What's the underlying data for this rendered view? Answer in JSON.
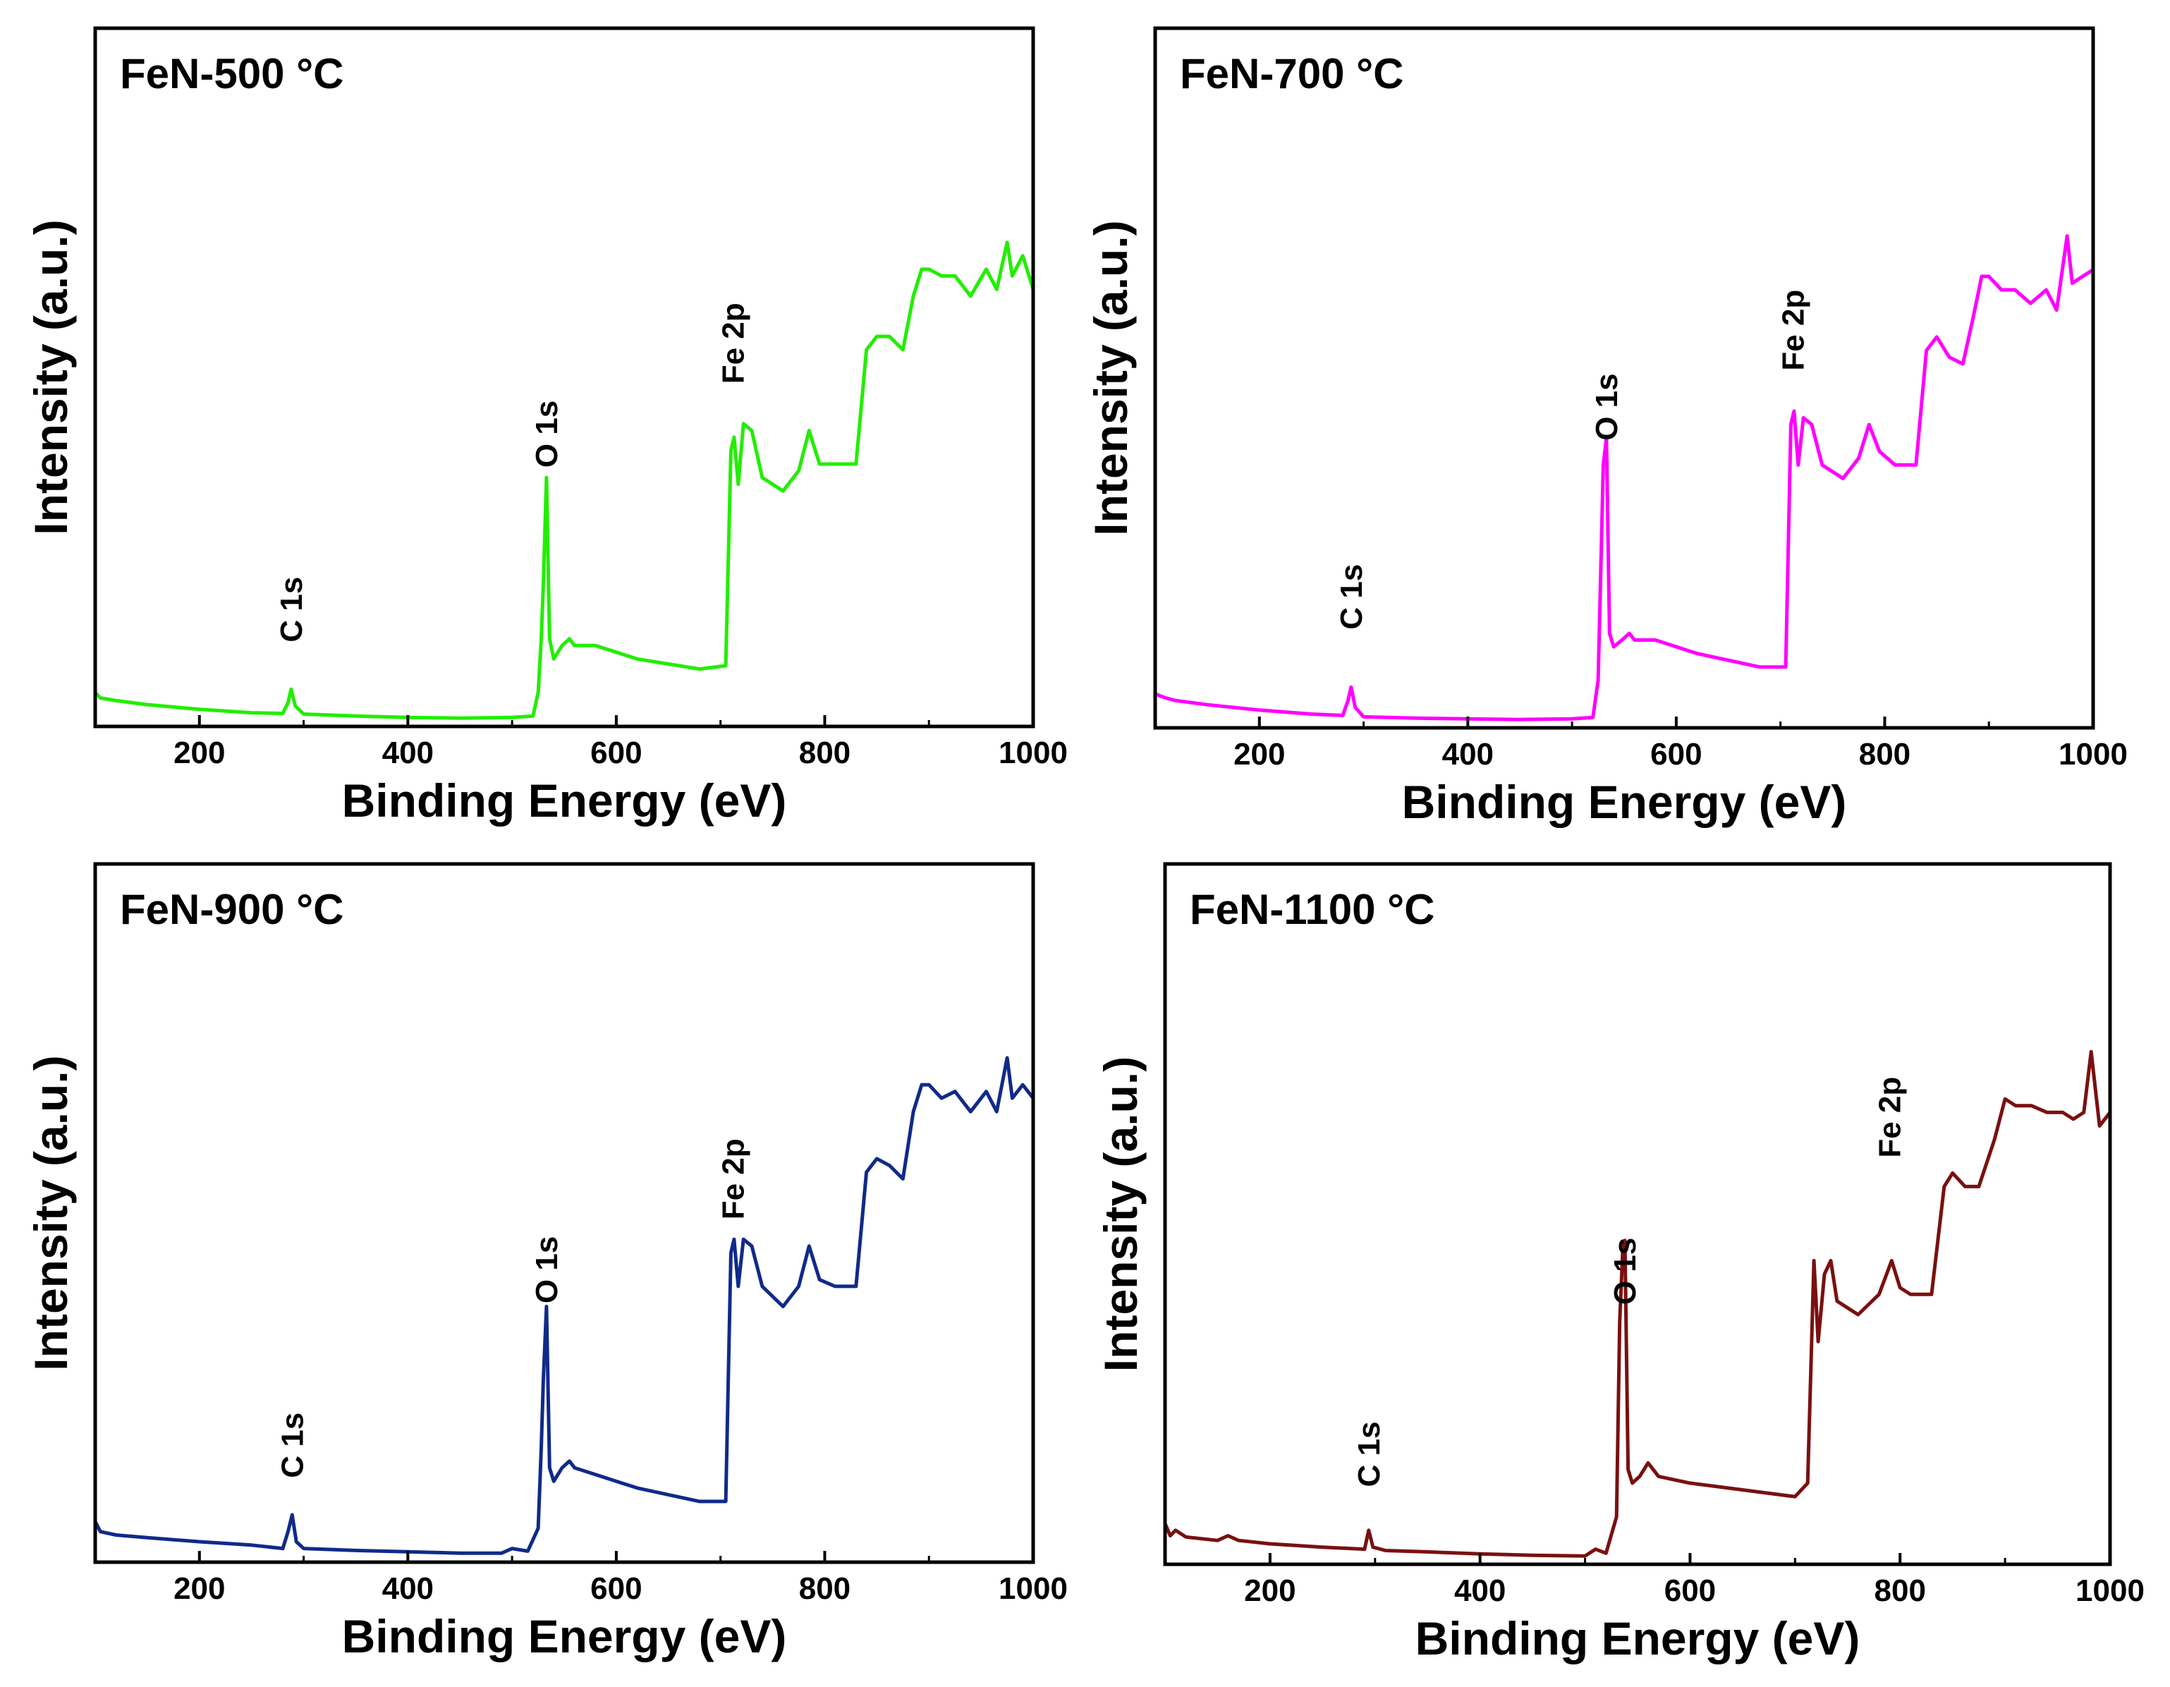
{
  "figure": {
    "description_free": true
  },
  "chart_data": [
    {
      "type": "line",
      "title": "FeN-500 °C",
      "xlabel": "Binding Energy (eV)",
      "ylabel": "Intensity (a.u.)",
      "xlim": [
        100,
        1000
      ],
      "ylim": [
        0,
        100
      ],
      "xticks": [
        200,
        400,
        600,
        800,
        1000
      ],
      "yticks_shown": false,
      "color": "#22ee00",
      "series": [
        {
          "name": "FeN-500 °C",
          "x": [
            100,
            105,
            120,
            150,
            200,
            250,
            280,
            285,
            288,
            292,
            300,
            350,
            400,
            450,
            500,
            520,
            525,
            528,
            530,
            533,
            536,
            540,
            548,
            555,
            560,
            580,
            620,
            680,
            705,
            710,
            713,
            717,
            722,
            730,
            740,
            760,
            775,
            785,
            795,
            810,
            830,
            840,
            850,
            862,
            875,
            885,
            893,
            900,
            912,
            925,
            940,
            955,
            965,
            975,
            980,
            990,
            1000
          ],
          "y": [
            4,
            3.2,
            2.8,
            2.2,
            1.5,
            1,
            0.9,
            2.5,
            4.5,
            2,
            0.8,
            0.5,
            0.3,
            0.2,
            0.3,
            0.5,
            4,
            12,
            20,
            36,
            12,
            9,
            11,
            12,
            11,
            11,
            9,
            7.5,
            8,
            40,
            42,
            35,
            44,
            43,
            36,
            34,
            37,
            43,
            38,
            38,
            38,
            55,
            57,
            57,
            55,
            63,
            67,
            67,
            66,
            66,
            63,
            67,
            64,
            71,
            66,
            69,
            64
          ]
        }
      ],
      "annotations": [
        {
          "label": "C 1s",
          "x": 288
        },
        {
          "label": "O 1s",
          "x": 533
        },
        {
          "label": "Fe 2p",
          "x": 712
        }
      ]
    },
    {
      "type": "line",
      "title": "FeN-700 °C",
      "xlabel": "Binding Energy (eV)",
      "ylabel": "Intensity (a.u.)",
      "xlim": [
        100,
        1000
      ],
      "ylim": [
        0,
        100
      ],
      "xticks": [
        200,
        400,
        600,
        800,
        1000
      ],
      "yticks_shown": false,
      "color": "#ff00ff",
      "series": [
        {
          "name": "FeN-700 °C",
          "x": [
            100,
            110,
            120,
            150,
            200,
            250,
            280,
            285,
            288,
            292,
            300,
            350,
            400,
            450,
            500,
            520,
            525,
            528,
            530,
            533,
            536,
            540,
            548,
            555,
            560,
            580,
            620,
            680,
            705,
            710,
            713,
            717,
            722,
            730,
            740,
            760,
            775,
            785,
            795,
            810,
            830,
            840,
            850,
            862,
            875,
            885,
            893,
            900,
            912,
            925,
            940,
            955,
            965,
            975,
            980,
            990,
            1000
          ],
          "y": [
            4,
            3.4,
            3,
            2.4,
            1.6,
            1,
            0.8,
            3,
            5,
            2,
            0.6,
            0.4,
            0.3,
            0.2,
            0.3,
            0.5,
            6,
            25,
            38,
            42,
            13,
            11,
            12,
            13,
            12,
            12,
            10,
            8,
            8,
            44,
            46,
            38,
            45,
            44,
            38,
            36,
            39,
            44,
            40,
            38,
            38,
            55,
            57,
            54,
            53,
            60,
            66,
            66,
            64,
            64,
            62,
            64,
            61,
            72,
            65,
            66,
            67
          ]
        }
      ],
      "annotations": [
        {
          "label": "C 1s",
          "x": 288
        },
        {
          "label": "O 1s",
          "x": 533
        },
        {
          "label": "Fe 2p",
          "x": 712
        }
      ]
    },
    {
      "type": "line",
      "title": "FeN-900 °C",
      "xlabel": "Binding Energy (eV)",
      "ylabel": "Intensity (a.u.)",
      "xlim": [
        100,
        1000
      ],
      "ylim": [
        0,
        100
      ],
      "xticks": [
        200,
        400,
        600,
        800,
        1000
      ],
      "yticks_shown": false,
      "color": "#102a8a",
      "series": [
        {
          "name": "FeN-900 °C",
          "x": [
            100,
            105,
            120,
            150,
            200,
            250,
            280,
            285,
            289,
            293,
            300,
            350,
            400,
            450,
            490,
            500,
            515,
            525,
            528,
            530,
            533,
            536,
            540,
            548,
            555,
            560,
            580,
            620,
            680,
            705,
            710,
            713,
            717,
            722,
            730,
            740,
            760,
            775,
            785,
            795,
            810,
            830,
            840,
            850,
            862,
            875,
            885,
            893,
            900,
            912,
            925,
            940,
            955,
            965,
            975,
            980,
            990,
            1000
          ],
          "y": [
            5,
            3.5,
            3,
            2.6,
            2,
            1.5,
            1,
            3.5,
            6,
            2,
            1,
            0.7,
            0.5,
            0.3,
            0.3,
            1,
            0.6,
            4,
            16,
            26,
            37,
            13,
            11,
            13,
            14,
            13,
            12,
            10,
            8,
            8,
            45,
            47,
            40,
            47,
            46,
            40,
            37,
            40,
            46,
            41,
            40,
            40,
            57,
            59,
            58,
            56,
            66,
            70,
            70,
            68,
            69,
            66,
            69,
            66,
            74,
            68,
            70,
            68
          ]
        }
      ],
      "annotations": [
        {
          "label": "C 1s",
          "x": 289
        },
        {
          "label": "O 1s",
          "x": 533
        },
        {
          "label": "Fe 2p",
          "x": 712
        }
      ]
    },
    {
      "type": "line",
      "title": "FeN-1100 °C",
      "xlabel": "Binding Energy (eV)",
      "ylabel": "Intensity (a.u.)",
      "xlim": [
        100,
        1000
      ],
      "ylim": [
        0,
        100
      ],
      "xticks": [
        200,
        400,
        600,
        800,
        1000
      ],
      "yticks_shown": false,
      "color": "#7a1010",
      "series": [
        {
          "name": "FeN-1100 °C",
          "x": [
            100,
            105,
            110,
            120,
            150,
            160,
            170,
            200,
            250,
            290,
            294,
            298,
            310,
            350,
            400,
            450,
            500,
            510,
            520,
            530,
            533,
            536,
            538,
            541,
            545,
            552,
            560,
            570,
            600,
            650,
            700,
            712,
            718,
            722,
            728,
            734,
            740,
            760,
            780,
            792,
            800,
            810,
            830,
            842,
            850,
            862,
            875,
            890,
            900,
            910,
            925,
            940,
            955,
            965,
            975,
            982,
            990,
            1000
          ],
          "y": [
            5,
            3.2,
            4,
            3,
            2.5,
            3.2,
            2.5,
            2,
            1.5,
            1.2,
            4,
            1.5,
            1,
            0.8,
            0.5,
            0.3,
            0.2,
            1.2,
            0.6,
            6,
            35,
            46,
            47,
            13,
            11,
            12,
            14,
            12,
            11,
            10,
            9,
            11,
            44,
            32,
            42,
            44,
            38,
            36,
            39,
            44,
            40,
            39,
            39,
            55,
            57,
            55,
            55,
            62,
            68,
            67,
            67,
            66,
            66,
            65,
            66,
            75,
            64,
            66
          ]
        }
      ],
      "annotations": [
        {
          "label": "C 1s",
          "x": 294
        },
        {
          "label": "O 1s",
          "x": 538
        },
        {
          "label": "Fe 2p",
          "x": 790
        }
      ]
    }
  ]
}
